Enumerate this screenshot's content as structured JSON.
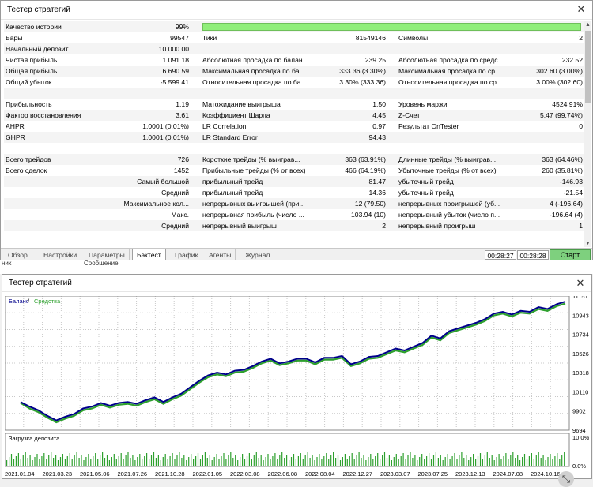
{
  "top_window": {
    "title": "Тестер стратегий",
    "close": "✕",
    "rows": [
      {
        "label": "Качество истории",
        "value": "99%"
      },
      {
        "label": "Бары",
        "value": "99547",
        "label2": "Тики",
        "value2": "81549146",
        "label3": "Символы",
        "value3": "2"
      },
      {
        "label": "Начальный депозит",
        "value": "10 000.00"
      },
      {
        "label": "Чистая прибыль",
        "value": "1 091.18",
        "label2": "Абсолютная просадка по балан...",
        "value2": "239.25",
        "label3": "Абсолютная просадка по средс...",
        "value3": "232.52"
      },
      {
        "label": "Общая прибыль",
        "value": "6 690.59",
        "label2": "Максимальная просадка по ба...",
        "value2": "333.36 (3.30%)",
        "label3": "Максимальная просадка по ср...",
        "value3": "302.60 (3.00%)"
      },
      {
        "label": "Общий убыток",
        "value": "-5 599.41",
        "label2": "Относительная просадка по ба...",
        "value2": "3.30% (333.36)",
        "label3": "Относительная просадка по ср...",
        "value3": "3.00% (302.60)"
      },
      {
        "label": "",
        "value": ""
      },
      {
        "label": "Прибыльность",
        "value": "1.19",
        "label2": "Матожидание выигрыша",
        "value2": "1.50",
        "label3": "Уровень маржи",
        "value3": "4524.91%"
      },
      {
        "label": "Фактор восстановления",
        "value": "3.61",
        "label2": "Коэффициент Шарпа",
        "value2": "4.45",
        "label3": "Z-Счет",
        "value3": "5.47 (99.74%)"
      },
      {
        "label": "AHPR",
        "value": "1.0001 (0.01%)",
        "label2": "LR Correlation",
        "value2": "0.97",
        "label3": "Результат OnTester",
        "value3": "0"
      },
      {
        "label": "GHPR",
        "value": "1.0001 (0.01%)",
        "label2": "LR Standard Error",
        "value2": "94.43"
      },
      {
        "label": "",
        "value": ""
      },
      {
        "label": "Всего трейдов",
        "value": "726",
        "label2": "Короткие трейды (% выиграв...",
        "value2": "363 (63.91%)",
        "label3": "Длинные трейды (% выиграв...",
        "value3": "363 (64.46%)"
      },
      {
        "label": "Всего сделок",
        "value": "1452",
        "label2": "Прибыльные трейды (% от всех)",
        "value2": "466 (64.19%)",
        "label3": "Убыточные трейды (% от всех)",
        "value3": "260 (35.81%)"
      },
      {
        "label_right": "Самый большой",
        "label2": "прибыльный трейд",
        "value2": "81.47",
        "label3": "убыточный трейд",
        "value3": "-146.93"
      },
      {
        "label_right": "Средний",
        "label2": "прибыльный трейд",
        "value2": "14.36",
        "label3": "убыточный трейд",
        "value3": "-21.54"
      },
      {
        "label_right": "Максимальное кол...",
        "label2": "непрерывных выигрышей (при...",
        "value2": "12 (79.50)",
        "label3": "непрерывных проигрышей (уб...",
        "value3": "4 (-196.64)"
      },
      {
        "label_right": "Макс.",
        "label2": "непрерывная прибыль (число ...",
        "value2": "103.94 (10)",
        "label3": "непрерывный убыток (число п...",
        "value3": "-196.64 (4)"
      },
      {
        "label_right": "Средний",
        "label2": "непрерывный выигрыш",
        "value2": "2",
        "label3": "непрерывный проигрыш",
        "value3": "1"
      }
    ],
    "quality_percent": 99,
    "tabs": [
      "Обзор",
      "Настройки",
      "Параметры",
      "Бэктест",
      "График",
      "Агенты",
      "Журнал"
    ],
    "active_tab": "Бэктест",
    "elapsed_time": "00:28:27",
    "total_time": "00:28:28",
    "start_button": "Старт",
    "behind_texts": [
      "ник",
      "Сообщение"
    ]
  },
  "chart_window": {
    "title": "Тестер стратегий",
    "close": "✕",
    "legend_balance": "Баланс",
    "legend_sep": " / ",
    "legend_equity": "Средства",
    "deposit_label": "Загрузка депозита",
    "deposit_top": "10.0%",
    "deposit_bottom": "0.0%",
    "colors": {
      "balance": "#00008b",
      "equity": "#2ea02e",
      "load": "#2ea02e",
      "grid": "#c8c8c8"
    }
  },
  "chart_data": {
    "type": "line",
    "x_labels": [
      "2021.01.04",
      "2021.03.23",
      "2021.05.06",
      "2021.07.26",
      "2021.10.28",
      "2022.01.05",
      "2022.03.08",
      "2022.06.08",
      "2022.08.04",
      "2022.12.27",
      "2023.03.07",
      "2023.07.25",
      "2023.12.13",
      "2024.07.08",
      "2024.10.16"
    ],
    "y_ticks": [
      11151,
      10943,
      10734,
      10526,
      10318,
      10110,
      9902,
      9694
    ],
    "ylim": [
      9694,
      11151
    ],
    "series": [
      {
        "name": "Баланс",
        "values": [
          10000,
          9950,
          9910,
          9850,
          9800,
          9840,
          9870,
          9930,
          9950,
          9990,
          9960,
          9990,
          10000,
          9980,
          10020,
          10050,
          10000,
          10050,
          10090,
          10160,
          10230,
          10290,
          10320,
          10300,
          10340,
          10350,
          10390,
          10440,
          10470,
          10420,
          10440,
          10470,
          10470,
          10430,
          10480,
          10480,
          10500,
          10410,
          10440,
          10490,
          10500,
          10540,
          10580,
          10560,
          10600,
          10640,
          10720,
          10690,
          10770,
          10800,
          10830,
          10860,
          10900,
          10960,
          10980,
          10950,
          10990,
          10980,
          11030,
          11010,
          11060,
          11090
        ]
      },
      {
        "name": "Средства",
        "values": [
          9990,
          9930,
          9890,
          9830,
          9780,
          9820,
          9850,
          9910,
          9930,
          9970,
          9940,
          9970,
          9980,
          9960,
          10000,
          10030,
          9980,
          10030,
          10070,
          10140,
          10210,
          10270,
          10300,
          10280,
          10320,
          10330,
          10370,
          10420,
          10450,
          10400,
          10420,
          10450,
          10450,
          10410,
          10460,
          10460,
          10480,
          10390,
          10420,
          10470,
          10480,
          10520,
          10560,
          10540,
          10580,
          10620,
          10700,
          10670,
          10750,
          10780,
          10810,
          10840,
          10880,
          10940,
          10960,
          10930,
          10970,
          10960,
          11010,
          10990,
          11040,
          11070
        ]
      }
    ]
  }
}
